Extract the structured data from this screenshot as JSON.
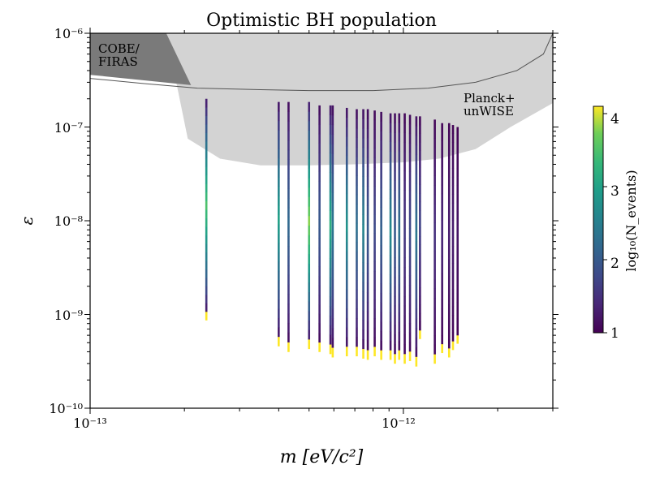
{
  "chart_data": {
    "type": "scatter",
    "title": "Optimistic BH population",
    "xlabel": "m [eV/c²]",
    "ylabel": "ε",
    "xscale": "log",
    "yscale": "log",
    "xlim": [
      1e-13,
      3e-12
    ],
    "ylim": [
      1e-10,
      1e-06
    ],
    "x_tick_labels": [
      "10⁻¹³",
      "10⁻¹²"
    ],
    "y_tick_labels": [
      "10⁻¹⁰",
      "10⁻⁹",
      "10⁻⁸",
      "10⁻⁷",
      "10⁻⁶"
    ],
    "colorbar": {
      "label": "log₁₀(N_events)",
      "ticks": [
        "1",
        "2",
        "3",
        "4"
      ],
      "range": [
        1,
        4.1
      ]
    },
    "excluded_regions": [
      {
        "name": "COBE/\nFIRAS",
        "label_lines": [
          "COBE/",
          "FIRAS"
        ],
        "color": "#7a7a7a",
        "boundary_m": [
          1e-13,
          1.75e-13,
          2.1e-13,
          2.1e-13,
          1e-13
        ],
        "boundary_eps": [
          1e-06,
          1e-06,
          2.8e-07,
          2.8e-07,
          3.6e-07
        ]
      },
      {
        "name": "Planck+\nunWISE",
        "label_lines": [
          "Planck+",
          "unWISE"
        ],
        "color": "#d3d3d3",
        "boundary_m": [
          1.75e-13,
          2.05e-13,
          2.6e-13,
          3.5e-13,
          5e-13,
          7e-13,
          1e-12,
          1.3e-12,
          1.7e-12,
          2.2e-12,
          3e-12,
          3e-12
        ],
        "boundary_eps": [
          1e-06,
          7.5e-08,
          4.6e-08,
          3.9e-08,
          3.9e-08,
          4e-08,
          4.2e-08,
          4.6e-08,
          5.8e-08,
          1e-07,
          1.8e-07,
          1e-06
        ],
        "outline_m": [
          1e-13,
          1.5e-13,
          2.2e-13,
          3.5e-13,
          5e-13,
          8e-13,
          1.2e-12,
          1.7e-12,
          2.3e-12,
          2.8e-12,
          3e-12
        ],
        "outline_eps": [
          3.3e-07,
          2.9e-07,
          2.6e-07,
          2.5e-07,
          2.45e-07,
          2.45e-07,
          2.6e-07,
          3e-07,
          4e-07,
          6e-07,
          1e-06
        ]
      }
    ],
    "series": [
      {
        "m": 2.35e-13,
        "eps_min": 8.7e-10,
        "eps_max": 2e-07,
        "peak": 3.5
      },
      {
        "m": 4e-13,
        "eps_min": 4.6e-10,
        "eps_max": 1.85e-07,
        "peak": 3.0
      },
      {
        "m": 4.3e-13,
        "eps_min": 4e-10,
        "eps_max": 1.85e-07,
        "peak": 2.2
      },
      {
        "m": 5e-13,
        "eps_min": 4.3e-10,
        "eps_max": 1.85e-07,
        "peak": 3.8
      },
      {
        "m": 5.4e-13,
        "eps_min": 4e-10,
        "eps_max": 1.7e-07,
        "peak": 2.0
      },
      {
        "m": 5.85e-13,
        "eps_min": 3.8e-10,
        "eps_max": 1.7e-07,
        "peak": 3.2
      },
      {
        "m": 5.95e-13,
        "eps_min": 3.5e-10,
        "eps_max": 1.7e-07,
        "peak": 2.4
      },
      {
        "m": 6.6e-13,
        "eps_min": 3.6e-10,
        "eps_max": 1.6e-07,
        "peak": 2.8
      },
      {
        "m": 7.1e-13,
        "eps_min": 3.6e-10,
        "eps_max": 1.55e-07,
        "peak": 2.3
      },
      {
        "m": 7.45e-13,
        "eps_min": 3.4e-10,
        "eps_max": 1.55e-07,
        "peak": 2.6
      },
      {
        "m": 7.7e-13,
        "eps_min": 3.3e-10,
        "eps_max": 1.55e-07,
        "peak": 2.0
      },
      {
        "m": 8.1e-13,
        "eps_min": 3.6e-10,
        "eps_max": 1.5e-07,
        "peak": 1.8
      },
      {
        "m": 8.5e-13,
        "eps_min": 3.3e-10,
        "eps_max": 1.45e-07,
        "peak": 2.1
      },
      {
        "m": 9.1e-13,
        "eps_min": 3.3e-10,
        "eps_max": 1.4e-07,
        "peak": 2.7
      },
      {
        "m": 9.4e-13,
        "eps_min": 3e-10,
        "eps_max": 1.4e-07,
        "peak": 2.0
      },
      {
        "m": 9.7e-13,
        "eps_min": 3.3e-10,
        "eps_max": 1.4e-07,
        "peak": 2.3
      },
      {
        "m": 1.01e-12,
        "eps_min": 3e-10,
        "eps_max": 1.4e-07,
        "peak": 1.6
      },
      {
        "m": 1.05e-12,
        "eps_min": 3.2e-10,
        "eps_max": 1.35e-07,
        "peak": 1.8
      },
      {
        "m": 1.1e-12,
        "eps_min": 2.8e-10,
        "eps_max": 1.3e-07,
        "peak": 2.4
      },
      {
        "m": 1.13e-12,
        "eps_min": 5.5e-10,
        "eps_max": 1.3e-07,
        "peak": 1.7
      },
      {
        "m": 1.26e-12,
        "eps_min": 3e-10,
        "eps_max": 1.2e-07,
        "peak": 1.5
      },
      {
        "m": 1.33e-12,
        "eps_min": 3.9e-10,
        "eps_max": 1.1e-07,
        "peak": 1.4
      },
      {
        "m": 1.4e-12,
        "eps_min": 3.5e-10,
        "eps_max": 1.1e-07,
        "peak": 1.3
      },
      {
        "m": 1.44e-12,
        "eps_min": 4.2e-10,
        "eps_max": 1.05e-07,
        "peak": 1.3
      },
      {
        "m": 1.49e-12,
        "eps_min": 4.9e-10,
        "eps_max": 1e-07,
        "peak": 1.2
      }
    ]
  }
}
